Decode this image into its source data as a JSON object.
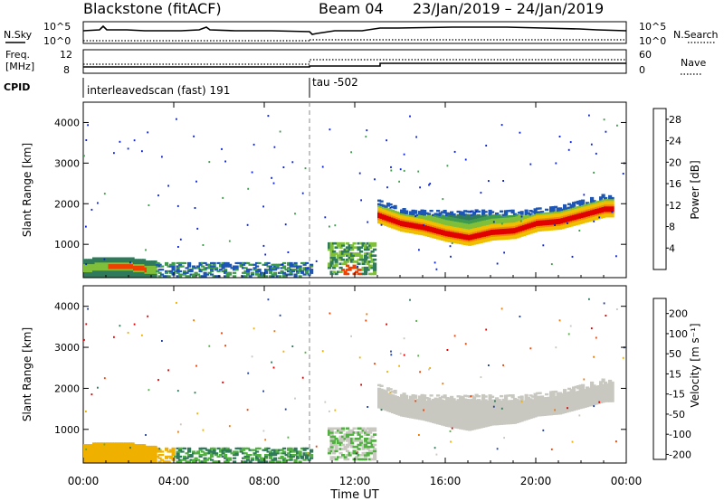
{
  "header": {
    "radar": "Blackstone (fitACF)",
    "beam": "Beam 04",
    "dates": "23/Jan/2019 – 24/Jan/2019"
  },
  "panels": {
    "nsky_label": "N.Sky",
    "nsky_ticks": [
      "10^5",
      "10^0"
    ],
    "nsearch_label": "N.Search",
    "nsearch_ticks": [
      "10^5",
      "10^0"
    ],
    "freq_label_1": "Freq.",
    "freq_label_2": "[MHz]",
    "freq_ticks": [
      "12",
      "8"
    ],
    "nave_label": "Nave",
    "nave_ticks": [
      "60",
      "0"
    ],
    "cpid_label": "CPID",
    "cpid_1": "interleavedscan (fast) 191",
    "cpid_2": "tau -502"
  },
  "axis": {
    "xlabel": "Time UT",
    "xticks": [
      "00:00",
      "04:00",
      "08:00",
      "12:00",
      "16:00",
      "20:00",
      "00:00"
    ],
    "ylabel": "Slant Range [km]",
    "yticks": [
      "1000",
      "2000",
      "3000",
      "4000"
    ]
  },
  "colorbars": {
    "power_label": "Power [dB]",
    "power_ticks": [
      "4",
      "8",
      "12",
      "16",
      "20",
      "24",
      "28"
    ],
    "velocity_label": "Velocity [m s⁻¹]",
    "velocity_ticks": [
      "200",
      "100",
      "50",
      "15",
      "-15",
      "-50",
      "-100",
      "-200"
    ]
  },
  "colors": {
    "power": [
      "#0a22e0",
      "#1d56b4",
      "#2f7a5a",
      "#3e9a4c",
      "#7fbf3a",
      "#f0c000",
      "#f08a00",
      "#f04000",
      "#e00000"
    ],
    "velocity": [
      "#2040a0",
      "#2f7a5a",
      "#50b040",
      "#c8c8c0",
      "#f0b000",
      "#f07800",
      "#f04000",
      "#e00000"
    ]
  },
  "chart_data": {
    "type": "heatmap",
    "x_range_hours": [
      0,
      24
    ],
    "y_range_km": [
      180,
      4500
    ],
    "xlabel": "Time UT",
    "ylabel": "Slant Range [km]",
    "mode_change_hour": 10.0,
    "power_band_f_region_km": [
      [
        13.0,
        1700
      ],
      [
        14.0,
        1500
      ],
      [
        15.0,
        1400
      ],
      [
        16.0,
        1250
      ],
      [
        17.0,
        1150
      ],
      [
        18.0,
        1280
      ],
      [
        19.0,
        1320
      ],
      [
        20.0,
        1500
      ],
      [
        21.0,
        1550
      ],
      [
        22.0,
        1700
      ],
      [
        23.0,
        1850
      ]
    ],
    "power_band_e_region_km": [
      [
        0.0,
        400
      ],
      [
        1.0,
        450
      ],
      [
        2.0,
        430
      ],
      [
        3.0,
        350
      ]
    ],
    "power_range_db": [
      0,
      30
    ],
    "velocity_range_ms": [
      -200,
      200
    ]
  }
}
